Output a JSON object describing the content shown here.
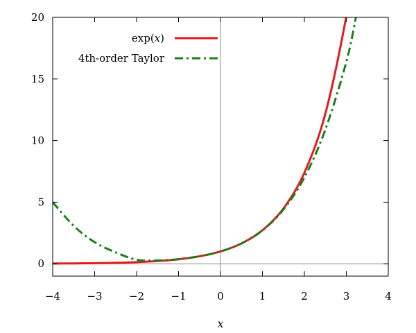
{
  "chart_data": {
    "type": "line",
    "title": "",
    "xlabel": "x",
    "ylabel": "",
    "xlim": [
      -4,
      4
    ],
    "ylim": [
      -1,
      20
    ],
    "grid": false,
    "zero_lines": true,
    "legend_position": "top-center",
    "x_ticks": [
      -4,
      -3,
      -2,
      -1,
      0,
      1,
      2,
      3,
      4
    ],
    "x_tick_labels": [
      "−4",
      "−3",
      "−2",
      "−1",
      "0",
      "1",
      "2",
      "3",
      "4"
    ],
    "y_ticks": [
      0,
      5,
      10,
      15,
      20
    ],
    "y_tick_labels": [
      "0",
      "5",
      "10",
      "15",
      "20"
    ],
    "x": [
      -4,
      -3.5,
      -3,
      -2.5,
      -2,
      -1.5,
      -1,
      -0.5,
      0,
      0.5,
      1,
      1.5,
      2,
      2.5,
      3,
      3.25
    ],
    "series": [
      {
        "name": "exp(x)",
        "legend_prefix": "exp(",
        "legend_var": "x",
        "legend_suffix": ")",
        "color": "#e41a1c",
        "style": "solid",
        "values": [
          0.018,
          0.03,
          0.05,
          0.082,
          0.135,
          0.223,
          0.368,
          0.607,
          1.0,
          1.649,
          2.718,
          4.482,
          7.389,
          12.18,
          20.09,
          25.79
        ]
      },
      {
        "name": "4th-order Taylor",
        "color": "#1a7f1a",
        "style": "dash-dot",
        "values": [
          5.0,
          3.08,
          1.75,
          0.93,
          0.33,
          0.27,
          0.375,
          0.607,
          1.0,
          1.648,
          2.708,
          4.398,
          7.0,
          10.89,
          16.38,
          20.35
        ]
      }
    ]
  }
}
